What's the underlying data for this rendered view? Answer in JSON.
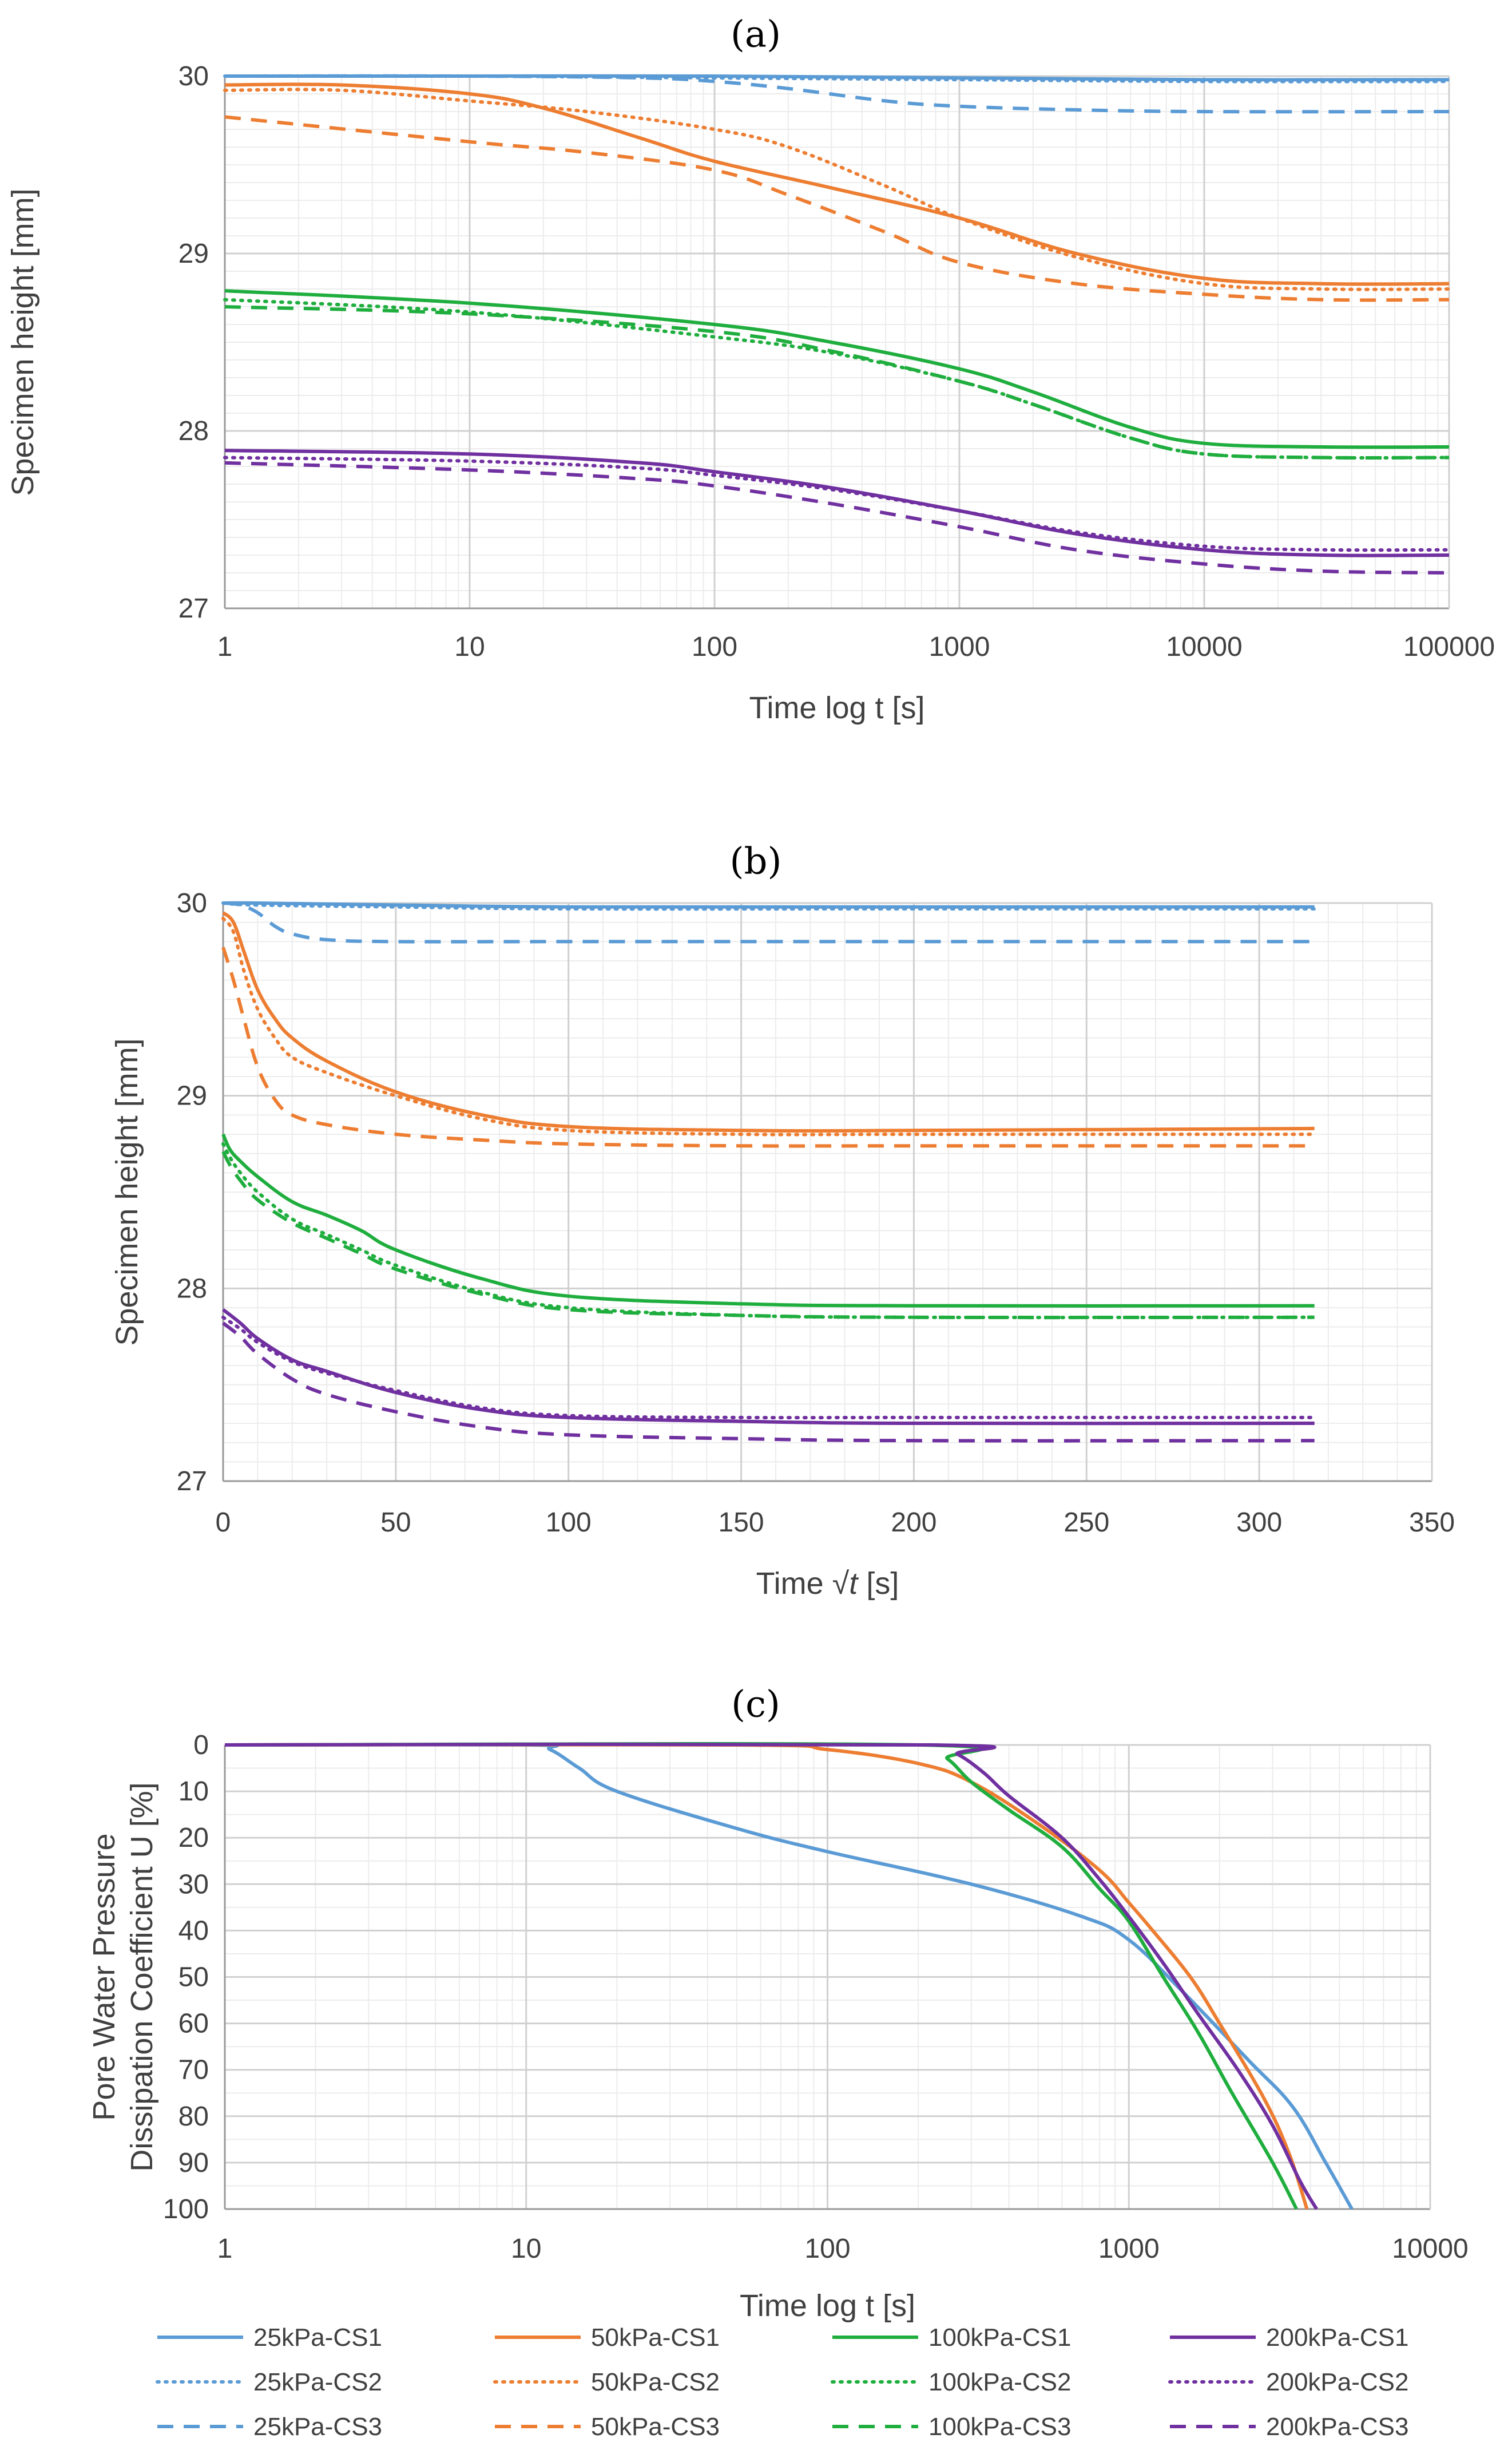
{
  "colors": {
    "25kPa": "#5B9BD5",
    "50kPa": "#ED7D31",
    "100kPa": "#1FAE3E",
    "200kPa": "#7030A0",
    "grid_major": "#d0d0d0",
    "grid_minor": "#ececec",
    "axis": "#999999"
  },
  "chart_data": [
    {
      "id": "a",
      "panel_label": "(a)",
      "type": "line",
      "x_scale": "log",
      "xlabel": "Time log t [s]",
      "ylabel": "Specimen height [mm]",
      "xlim": [
        1,
        100000
      ],
      "ylim": [
        27,
        30
      ],
      "x_ticks": [
        1,
        10,
        100,
        1000,
        10000,
        100000
      ],
      "x_tick_labels": [
        "1",
        "10",
        "100",
        "1000",
        "10000",
        "100000"
      ],
      "y_ticks": [
        27,
        28,
        29,
        30
      ],
      "y_tick_labels": [
        "27",
        "28",
        "29",
        "30"
      ],
      "series": [
        {
          "name": "25kPa-CS1",
          "color": "25kPa",
          "dash": "solid",
          "x": [
            1,
            10,
            100,
            1000,
            10000,
            100000
          ],
          "y": [
            30.0,
            30.0,
            30.0,
            29.99,
            29.98,
            29.98
          ]
        },
        {
          "name": "25kPa-CS2",
          "color": "25kPa",
          "dash": "dotted",
          "x": [
            1,
            10,
            100,
            1000,
            10000,
            100000
          ],
          "y": [
            30.0,
            30.0,
            29.99,
            29.98,
            29.97,
            29.97
          ]
        },
        {
          "name": "25kPa-CS3",
          "color": "25kPa",
          "dash": "dashed",
          "x": [
            1,
            10,
            50,
            100,
            200,
            500,
            1000,
            3000,
            10000,
            100000
          ],
          "y": [
            30.0,
            30.0,
            29.99,
            29.97,
            29.93,
            29.86,
            29.83,
            29.81,
            29.8,
            29.8
          ]
        },
        {
          "name": "50kPa-CS1",
          "color": "50kPa",
          "dash": "solid",
          "x": [
            1,
            3,
            10,
            20,
            50,
            100,
            300,
            1000,
            3000,
            10000,
            30000,
            100000
          ],
          "y": [
            29.95,
            29.95,
            29.9,
            29.82,
            29.65,
            29.52,
            29.37,
            29.2,
            29.0,
            28.86,
            28.83,
            28.83
          ]
        },
        {
          "name": "50kPa-CS2",
          "color": "50kPa",
          "dash": "dotted",
          "x": [
            1,
            3,
            10,
            30,
            100,
            200,
            500,
            1000,
            3000,
            10000,
            30000,
            100000
          ],
          "y": [
            29.92,
            29.92,
            29.86,
            29.8,
            29.7,
            29.6,
            29.38,
            29.2,
            28.98,
            28.83,
            28.8,
            28.8
          ]
        },
        {
          "name": "50kPa-CS3",
          "color": "50kPa",
          "dash": "dashed",
          "x": [
            1,
            10,
            30,
            100,
            200,
            500,
            1000,
            3000,
            10000,
            30000,
            100000
          ],
          "y": [
            29.77,
            29.63,
            29.57,
            29.47,
            29.33,
            29.12,
            28.95,
            28.83,
            28.77,
            28.74,
            28.74
          ]
        },
        {
          "name": "100kPa-CS1",
          "color": "100kPa",
          "dash": "solid",
          "x": [
            1,
            10,
            100,
            300,
            1000,
            2000,
            5000,
            10000,
            30000,
            100000
          ],
          "y": [
            28.79,
            28.72,
            28.6,
            28.5,
            28.35,
            28.22,
            28.02,
            27.93,
            27.91,
            27.91
          ]
        },
        {
          "name": "100kPa-CS2",
          "color": "100kPa",
          "dash": "dotted",
          "x": [
            1,
            10,
            100,
            300,
            1000,
            2000,
            5000,
            10000,
            30000,
            100000
          ],
          "y": [
            28.74,
            28.67,
            28.53,
            28.44,
            28.28,
            28.15,
            27.96,
            27.87,
            27.85,
            27.85
          ]
        },
        {
          "name": "100kPa-CS3",
          "color": "100kPa",
          "dash": "dashed",
          "x": [
            1,
            10,
            100,
            300,
            1000,
            2000,
            5000,
            10000,
            30000,
            100000
          ],
          "y": [
            28.7,
            28.66,
            28.56,
            28.45,
            28.28,
            28.15,
            27.96,
            27.87,
            27.85,
            27.85
          ]
        },
        {
          "name": "200kPa-CS1",
          "color": "200kPa",
          "dash": "solid",
          "x": [
            1,
            10,
            50,
            100,
            300,
            1000,
            3000,
            10000,
            30000,
            100000
          ],
          "y": [
            27.89,
            27.87,
            27.82,
            27.77,
            27.68,
            27.55,
            27.42,
            27.33,
            27.3,
            27.3
          ]
        },
        {
          "name": "200kPa-CS2",
          "color": "200kPa",
          "dash": "dotted",
          "x": [
            1,
            10,
            50,
            100,
            300,
            1000,
            3000,
            10000,
            30000,
            100000
          ],
          "y": [
            27.85,
            27.83,
            27.79,
            27.75,
            27.67,
            27.55,
            27.43,
            27.35,
            27.33,
            27.33
          ]
        },
        {
          "name": "200kPa-CS3",
          "color": "200kPa",
          "dash": "dashed",
          "x": [
            1,
            10,
            50,
            100,
            300,
            1000,
            3000,
            10000,
            30000,
            100000
          ],
          "y": [
            27.82,
            27.78,
            27.73,
            27.69,
            27.59,
            27.46,
            27.33,
            27.25,
            27.21,
            27.2
          ]
        }
      ]
    },
    {
      "id": "b",
      "panel_label": "(b)",
      "type": "line",
      "x_scale": "linear",
      "xlabel_prefix": "Time √",
      "xlabel_var": "t",
      "xlabel_suffix": " [s]",
      "ylabel": "Specimen height [mm]",
      "xlim": [
        0,
        350
      ],
      "ylim": [
        27,
        30
      ],
      "x_ticks": [
        0,
        50,
        100,
        150,
        200,
        250,
        300,
        350
      ],
      "x_tick_labels": [
        "0",
        "50",
        "100",
        "150",
        "200",
        "250",
        "300",
        "350"
      ],
      "y_ticks": [
        27,
        28,
        29,
        30
      ],
      "y_tick_labels": [
        "27",
        "28",
        "29",
        "30"
      ],
      "series": [
        {
          "name": "25kPa-CS1",
          "color": "25kPa",
          "dash": "solid",
          "x": [
            0,
            10,
            50,
            100,
            200,
            316
          ],
          "y": [
            30.0,
            30.0,
            29.99,
            29.98,
            29.98,
            29.98
          ]
        },
        {
          "name": "25kPa-CS2",
          "color": "25kPa",
          "dash": "dotted",
          "x": [
            0,
            10,
            50,
            100,
            200,
            316
          ],
          "y": [
            30.0,
            29.99,
            29.98,
            29.97,
            29.97,
            29.97
          ]
        },
        {
          "name": "25kPa-CS3",
          "color": "25kPa",
          "dash": "dashed",
          "x": [
            0,
            5,
            10,
            15,
            20,
            30,
            50,
            100,
            200,
            316
          ],
          "y": [
            30.0,
            29.99,
            29.95,
            29.88,
            29.84,
            29.81,
            29.8,
            29.8,
            29.8,
            29.8
          ]
        },
        {
          "name": "50kPa-CS1",
          "color": "50kPa",
          "dash": "solid",
          "x": [
            0,
            3,
            6,
            10,
            15,
            20,
            30,
            50,
            75,
            100,
            150,
            200,
            316
          ],
          "y": [
            29.95,
            29.9,
            29.75,
            29.55,
            29.4,
            29.3,
            29.18,
            29.02,
            28.9,
            28.84,
            28.82,
            28.82,
            28.83
          ]
        },
        {
          "name": "50kPa-CS2",
          "color": "50kPa",
          "dash": "dotted",
          "x": [
            0,
            3,
            6,
            10,
            15,
            20,
            30,
            50,
            75,
            100,
            150,
            200,
            316
          ],
          "y": [
            29.92,
            29.85,
            29.65,
            29.45,
            29.3,
            29.2,
            29.12,
            29.0,
            28.88,
            28.82,
            28.8,
            28.8,
            28.8
          ]
        },
        {
          "name": "50kPa-CS3",
          "color": "50kPa",
          "dash": "dashed",
          "x": [
            0,
            3,
            6,
            10,
            15,
            20,
            30,
            50,
            75,
            100,
            150,
            200,
            316
          ],
          "y": [
            29.77,
            29.6,
            29.4,
            29.15,
            28.98,
            28.9,
            28.85,
            28.8,
            28.77,
            28.75,
            28.74,
            28.74,
            28.74
          ]
        },
        {
          "name": "100kPa-CS1",
          "color": "100kPa",
          "dash": "solid",
          "x": [
            0,
            2,
            5,
            10,
            20,
            30,
            40,
            50,
            75,
            100,
            150,
            200,
            316
          ],
          "y": [
            28.8,
            28.72,
            28.66,
            28.58,
            28.45,
            28.38,
            28.3,
            28.2,
            28.05,
            27.96,
            27.92,
            27.91,
            27.91
          ]
        },
        {
          "name": "100kPa-CS2",
          "color": "100kPa",
          "dash": "dotted",
          "x": [
            0,
            2,
            5,
            10,
            20,
            30,
            40,
            50,
            75,
            100,
            150,
            200,
            316
          ],
          "y": [
            28.75,
            28.68,
            28.6,
            28.5,
            28.36,
            28.28,
            28.2,
            28.12,
            27.98,
            27.9,
            27.86,
            27.85,
            27.85
          ]
        },
        {
          "name": "100kPa-CS3",
          "color": "100kPa",
          "dash": "dashed",
          "x": [
            0,
            2,
            5,
            10,
            20,
            30,
            40,
            50,
            75,
            100,
            150,
            200,
            316
          ],
          "y": [
            28.71,
            28.64,
            28.56,
            28.46,
            28.34,
            28.26,
            28.18,
            28.1,
            27.97,
            27.89,
            27.86,
            27.85,
            27.85
          ]
        },
        {
          "name": "200kPa-CS1",
          "color": "200kPa",
          "dash": "solid",
          "x": [
            0,
            5,
            10,
            20,
            30,
            50,
            75,
            100,
            150,
            200,
            316
          ],
          "y": [
            27.89,
            27.82,
            27.74,
            27.63,
            27.57,
            27.46,
            27.37,
            27.33,
            27.31,
            27.3,
            27.3
          ]
        },
        {
          "name": "200kPa-CS2",
          "color": "200kPa",
          "dash": "dotted",
          "x": [
            0,
            5,
            10,
            20,
            30,
            50,
            75,
            100,
            150,
            200,
            316
          ],
          "y": [
            27.85,
            27.79,
            27.72,
            27.62,
            27.56,
            27.47,
            27.38,
            27.34,
            27.33,
            27.33,
            27.33
          ]
        },
        {
          "name": "200kPa-CS3",
          "color": "200kPa",
          "dash": "dashed",
          "x": [
            0,
            5,
            10,
            20,
            30,
            50,
            75,
            100,
            150,
            200,
            316
          ],
          "y": [
            27.82,
            27.75,
            27.66,
            27.53,
            27.45,
            27.36,
            27.28,
            27.24,
            27.22,
            27.21,
            27.21
          ]
        }
      ]
    },
    {
      "id": "c",
      "panel_label": "(c)",
      "type": "line",
      "x_scale": "log",
      "xlabel": "Time log t [s]",
      "ylabel_line1": "Pore Water Pressure",
      "ylabel_line2": "Dissipation Coefficient U [%]",
      "xlim": [
        1,
        10000
      ],
      "ylim": [
        0,
        100
      ],
      "y_inverted": true,
      "x_ticks": [
        1,
        10,
        100,
        1000,
        10000
      ],
      "x_tick_labels": [
        "1",
        "10",
        "100",
        "1000",
        "10000"
      ],
      "y_ticks": [
        0,
        10,
        20,
        30,
        40,
        50,
        60,
        70,
        80,
        90,
        100
      ],
      "y_tick_labels": [
        "0",
        "10",
        "20",
        "30",
        "40",
        "50",
        "60",
        "70",
        "80",
        "90",
        "100"
      ],
      "series": [
        {
          "name": "25kPa-CS1",
          "color": "25kPa",
          "dash": "solid",
          "x": [
            1,
            10,
            12,
            15,
            20,
            50,
            100,
            300,
            700,
            1000,
            1500,
            2500,
            3500,
            4500,
            5500
          ],
          "y": [
            0,
            0,
            1,
            5,
            10,
            18,
            23,
            30,
            37,
            42,
            53,
            68,
            78,
            90,
            100
          ]
        },
        {
          "name": "50kPa-CS1",
          "color": "50kPa",
          "dash": "solid",
          "x": [
            1,
            50,
            100,
            200,
            300,
            500,
            800,
            1000,
            1200,
            1600,
            2000,
            2800,
            3400,
            3900
          ],
          "y": [
            0,
            0,
            1,
            4,
            8,
            17,
            27,
            34,
            40,
            50,
            60,
            76,
            88,
            100
          ]
        },
        {
          "name": "100kPa-CS1",
          "color": "100kPa",
          "dash": "solid",
          "x": [
            1,
            200,
            250,
            300,
            400,
            600,
            800,
            1000,
            1300,
            1700,
            2200,
            3000,
            3600
          ],
          "y": [
            0,
            0,
            3,
            8,
            14,
            22,
            31,
            38,
            50,
            62,
            75,
            90,
            100
          ]
        },
        {
          "name": "200kPa-CS1",
          "color": "200kPa",
          "dash": "solid",
          "x": [
            1,
            220,
            270,
            330,
            400,
            600,
            800,
            1000,
            1300,
            1700,
            2300,
            3000,
            3700,
            4200
          ],
          "y": [
            0,
            0,
            2,
            6,
            11,
            20,
            29,
            37,
            47,
            58,
            70,
            82,
            94,
            100
          ]
        }
      ]
    }
  ],
  "legend": [
    {
      "label": "25kPa-CS1",
      "color": "25kPa",
      "dash": "solid"
    },
    {
      "label": "50kPa-CS1",
      "color": "50kPa",
      "dash": "solid"
    },
    {
      "label": "100kPa-CS1",
      "color": "100kPa",
      "dash": "solid"
    },
    {
      "label": "200kPa-CS1",
      "color": "200kPa",
      "dash": "solid"
    },
    {
      "label": "25kPa-CS2",
      "color": "25kPa",
      "dash": "dotted"
    },
    {
      "label": "50kPa-CS2",
      "color": "50kPa",
      "dash": "dotted"
    },
    {
      "label": "100kPa-CS2",
      "color": "100kPa",
      "dash": "dotted"
    },
    {
      "label": "200kPa-CS2",
      "color": "200kPa",
      "dash": "dotted"
    },
    {
      "label": "25kPa-CS3",
      "color": "25kPa",
      "dash": "dashed"
    },
    {
      "label": "50kPa-CS3",
      "color": "50kPa",
      "dash": "dashed"
    },
    {
      "label": "100kPa-CS3",
      "color": "100kPa",
      "dash": "dashed"
    },
    {
      "label": "200kPa-CS3",
      "color": "200kPa",
      "dash": "dashed"
    }
  ]
}
